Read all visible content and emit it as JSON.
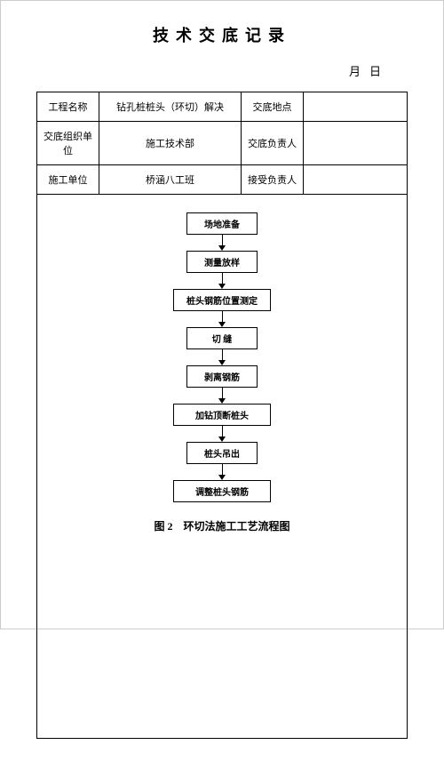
{
  "title": "技术交底记录",
  "date_label_month": "月",
  "date_label_day": "日",
  "table": {
    "r1c1": "工程名称",
    "r1c2": "钻孔桩桩头（环切）解决",
    "r1c3": "交底地点",
    "r1c4": "",
    "r2c1": "交底组织单位",
    "r2c2": "施工技术部",
    "r2c3": "交底负责人",
    "r2c4": "",
    "r3c1": "施工单位",
    "r3c2": "桥涵八工班",
    "r3c3": "接受负责人",
    "r3c4": ""
  },
  "flowchart": {
    "type": "flowchart",
    "nodes": [
      "场地准备",
      "测量放样",
      "桩头钢筋位置测定",
      "切 缝",
      "剥离钢筋",
      "加钻顶断桩头",
      "桩头吊出",
      "调整桩头钢筋"
    ],
    "node_border": "#000000",
    "node_bg": "#ffffff",
    "node_fontsize": 10,
    "arrow_color": "#000000"
  },
  "caption": "图 2　环切法施工工艺流程图"
}
